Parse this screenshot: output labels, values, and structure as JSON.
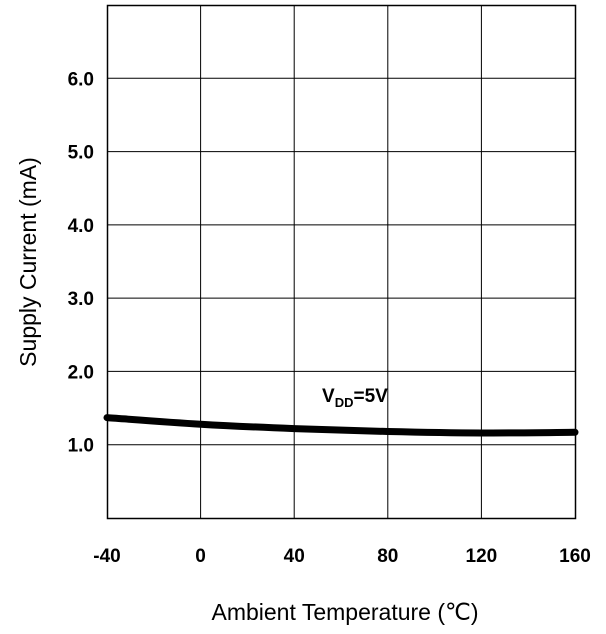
{
  "chart_data": {
    "type": "line",
    "title": "",
    "xlabel": "Ambient Temperature (℃)",
    "ylabel": "Supply Current (mA)",
    "xlim": [
      -40,
      160
    ],
    "ylim": [
      0,
      7.0
    ],
    "x_ticks": [
      "-40",
      "0",
      "40",
      "80",
      "120",
      "160"
    ],
    "y_ticks": [
      "1.0",
      "2.0",
      "3.0",
      "4.0",
      "5.0",
      "6.0"
    ],
    "grid": true,
    "series": [
      {
        "name": "VDD=5V",
        "x": [
          -40,
          0,
          40,
          80,
          120,
          160
        ],
        "y": [
          1.37,
          1.28,
          1.22,
          1.18,
          1.16,
          1.17
        ]
      }
    ],
    "annotation": {
      "main": "V",
      "sub": "DD",
      "rest": "=5V"
    }
  }
}
